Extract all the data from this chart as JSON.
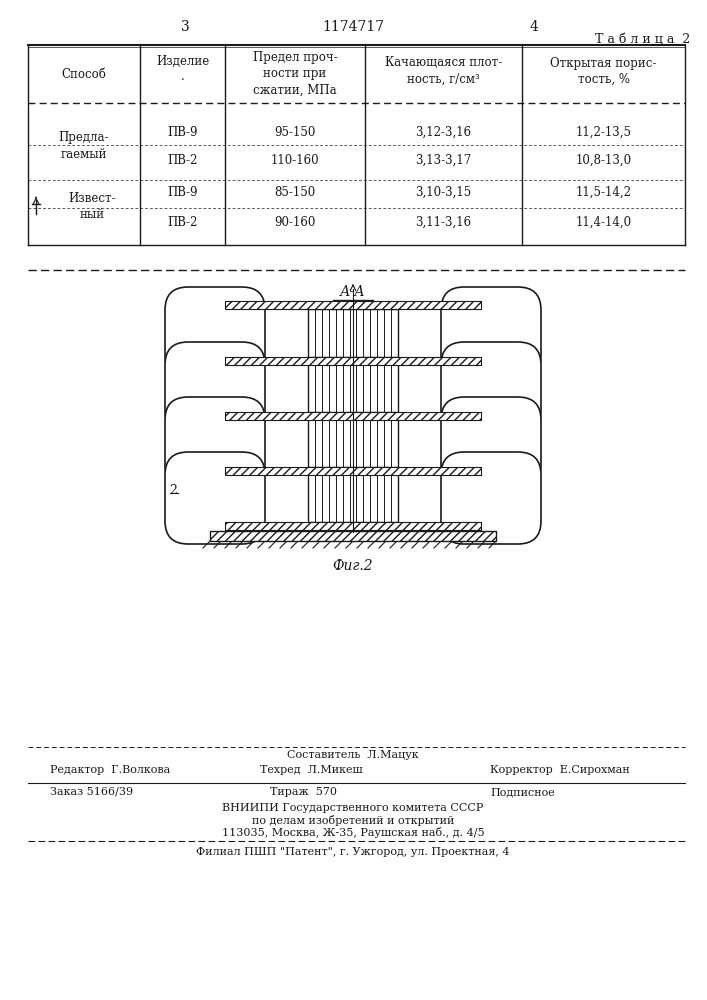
{
  "page_num_left": "3",
  "page_title": "1174717",
  "page_num_right": "4",
  "table_label": "Т а б л и ц а  2",
  "bg_color": "#ffffff",
  "text_color": "#1a1a1a",
  "rows": [
    [
      "Предла-\nгаемый",
      "ПВ-9",
      "95-150",
      "3,12-3,16",
      "11,2-13,5"
    ],
    [
      "",
      "ПВ-2",
      "110-160",
      "3,13-3,17",
      "10,8-13,0"
    ],
    [
      "Извест-\nный",
      "ПВ-9",
      "85-150",
      "3,10-3,15",
      "11,5-14,2"
    ],
    [
      "",
      "ПВ-2",
      "90-160",
      "3,11-3,16",
      "11,4-14,0"
    ]
  ],
  "footer_editor": "Редактор  Г.Волкова",
  "footer_sostavitel": "Составитель  Л.Мацук",
  "footer_tekhred": "Техред  Л.Микеш",
  "footer_korrektor": "Корректор  Е.Сирохман",
  "footer_zakaz": "Заказ 5166/39",
  "footer_tirazh": "Тираж  570",
  "footer_podpisnoe": "Подписное",
  "footer_vnipi": "ВНИИПИ Государственного комитета СССР\nпо делам изобретений и открытий\n113035, Москва, Ж-35, Раушская наб., д. 4/5",
  "footer_filial": "Филиал ПШП \"Патент\", г. Ужгород, ул. Проектная, 4"
}
